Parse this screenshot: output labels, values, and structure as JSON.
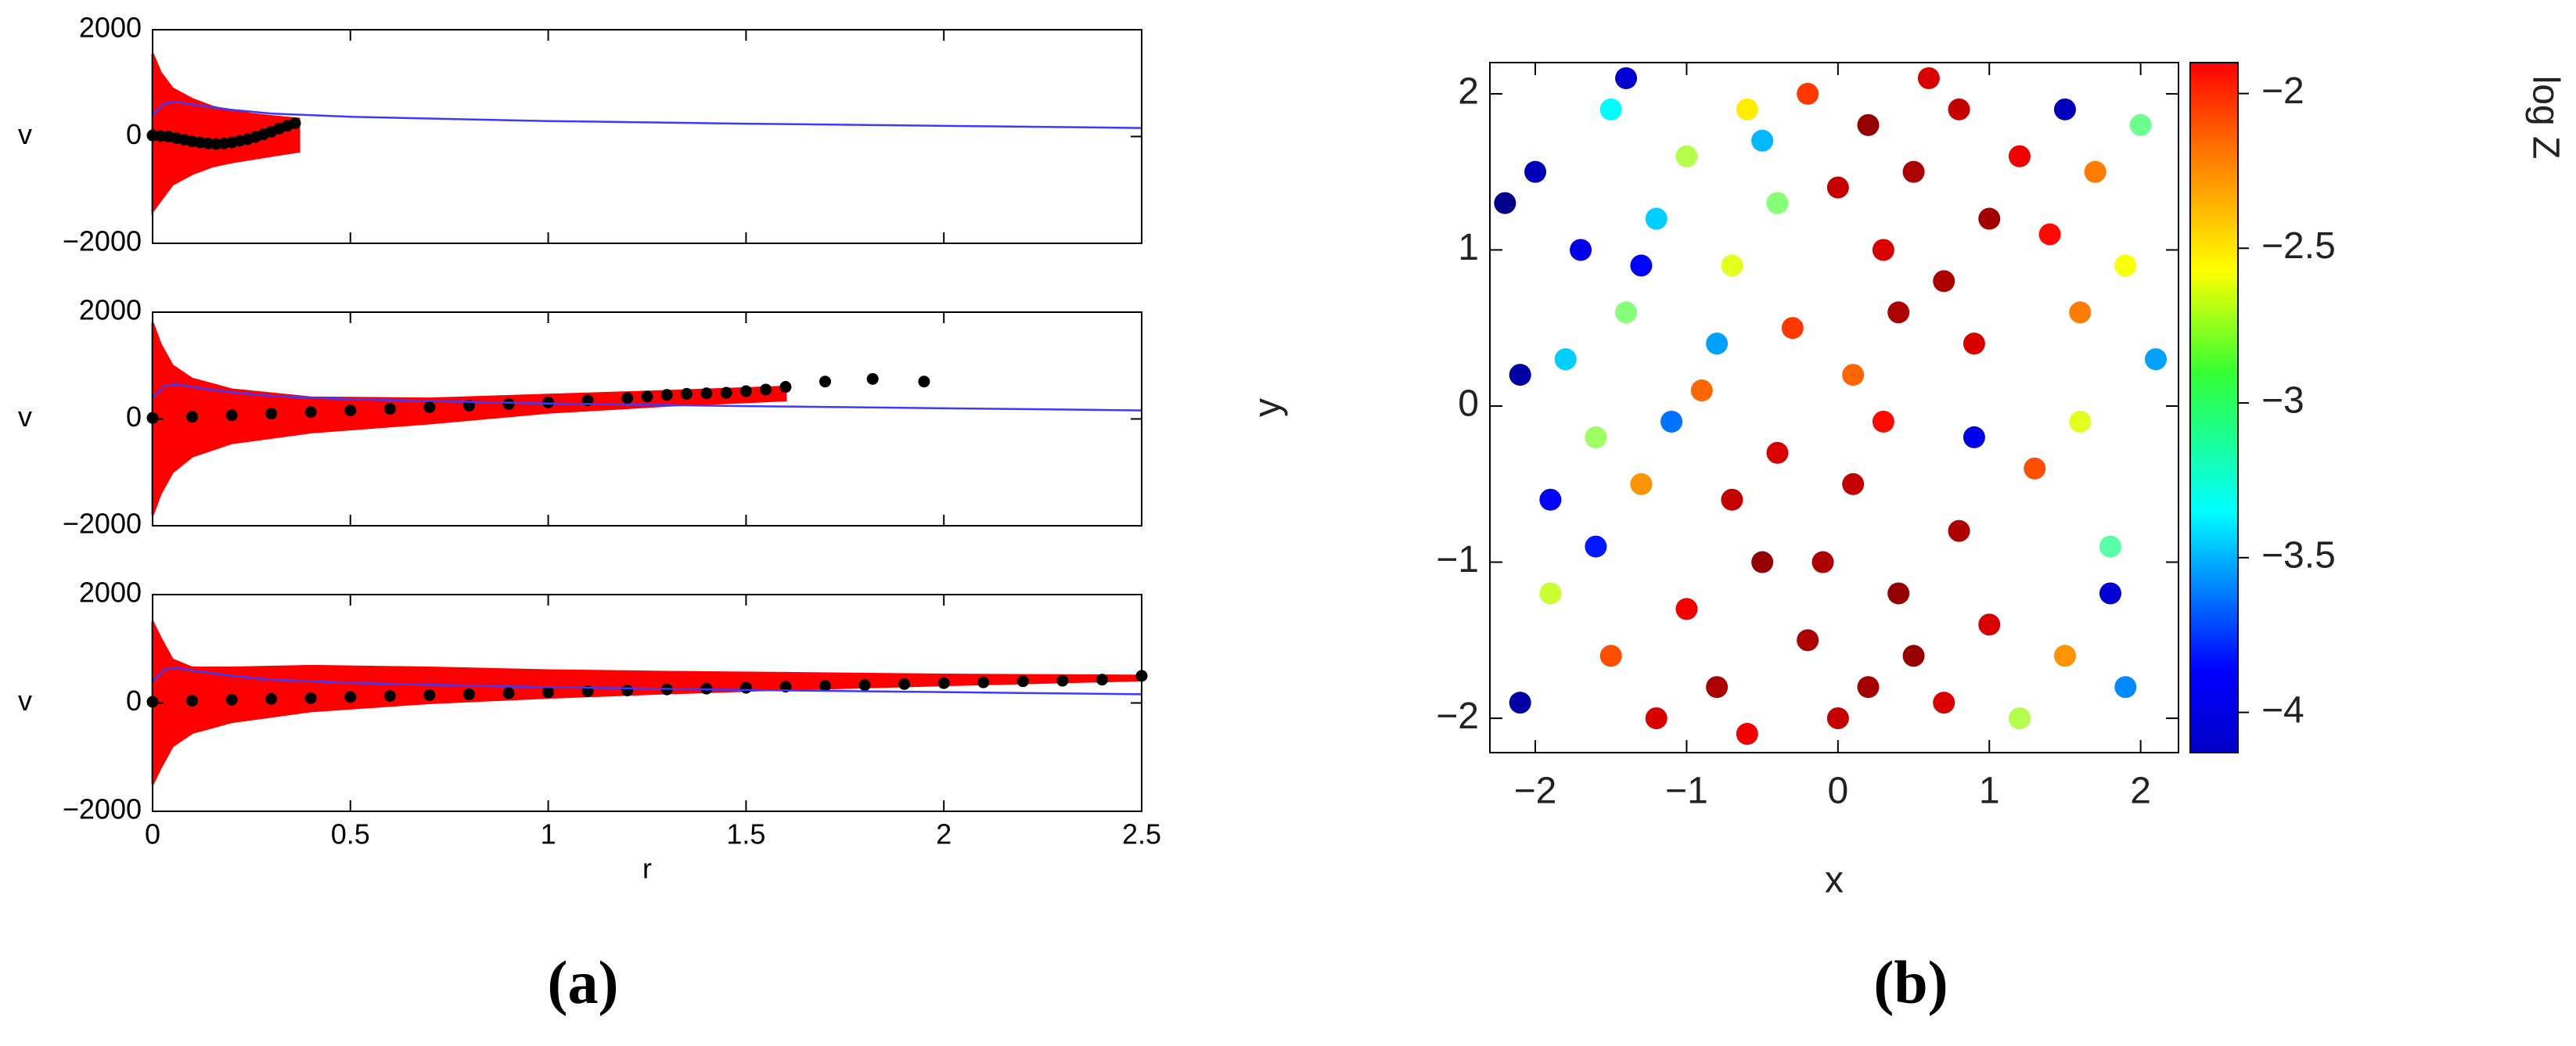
{
  "chart_data": [
    {
      "type": "scatter",
      "ylabel": "v",
      "xlim": [
        0,
        2.5
      ],
      "ylim": [
        -2000,
        2000
      ],
      "xticks": [
        0,
        0.5,
        1,
        1.5,
        2,
        2.5
      ],
      "show_xtick_labels": false,
      "yticks": [
        {
          "value": -2000,
          "label": "−2000"
        },
        0,
        2000
      ],
      "bands": [
        {
          "color": "#ff0000",
          "x": [
            0,
            0.02,
            0.05,
            0.1,
            0.15,
            0.2,
            0.25,
            0.3,
            0.37
          ],
          "upper": [
            1550,
            1200,
            900,
            700,
            560,
            480,
            420,
            380,
            330
          ],
          "lower": [
            -1400,
            -1200,
            -900,
            -700,
            -560,
            -480,
            -420,
            -360,
            -280
          ]
        }
      ],
      "series": [
        {
          "color": "#000000",
          "x": [
            0,
            0.02,
            0.04,
            0.06,
            0.08,
            0.1,
            0.12,
            0.14,
            0.16,
            0.18,
            0.2,
            0.22,
            0.24,
            0.26,
            0.28,
            0.3,
            0.32,
            0.34,
            0.36
          ],
          "values": [
            20,
            10,
            0,
            -30,
            -60,
            -90,
            -110,
            -130,
            -140,
            -130,
            -110,
            -80,
            -50,
            -10,
            40,
            90,
            150,
            200,
            250
          ]
        }
      ],
      "lines": [
        {
          "color": "#3b3bff",
          "x": [
            0,
            0.03,
            0.06,
            0.1,
            0.2,
            0.3,
            0.5,
            0.8,
            1,
            1.5,
            2,
            2.5
          ],
          "values": [
            400,
            620,
            650,
            600,
            500,
            430,
            370,
            320,
            290,
            240,
            200,
            160
          ]
        }
      ]
    },
    {
      "type": "scatter",
      "ylabel": "v",
      "xlim": [
        0,
        2.5
      ],
      "ylim": [
        -2000,
        2000
      ],
      "xticks": [
        0,
        0.5,
        1,
        1.5,
        2,
        2.5
      ],
      "show_xtick_labels": false,
      "yticks": [
        {
          "value": -2000,
          "label": "−2000"
        },
        0,
        2000
      ],
      "bands": [
        {
          "color": "#ff0000",
          "x": [
            0,
            0.02,
            0.05,
            0.1,
            0.2,
            0.4,
            0.7,
            1,
            1.3,
            1.6
          ],
          "upper": [
            1800,
            1400,
            1000,
            750,
            550,
            400,
            380,
            450,
            520,
            600
          ],
          "lower": [
            -1800,
            -1400,
            -1000,
            -700,
            -450,
            -250,
            -80,
            120,
            250,
            350
          ]
        }
      ],
      "series": [
        {
          "color": "#000000",
          "x": [
            0,
            0.1,
            0.2,
            0.3,
            0.4,
            0.5,
            0.6,
            0.7,
            0.8,
            0.9,
            1.0,
            1.1,
            1.2,
            1.25,
            1.3,
            1.35,
            1.4,
            1.45,
            1.5,
            1.55,
            1.6,
            1.7,
            1.82,
            1.95
          ],
          "values": [
            20,
            40,
            70,
            100,
            130,
            160,
            190,
            220,
            250,
            280,
            310,
            350,
            390,
            420,
            450,
            470,
            480,
            490,
            520,
            550,
            600,
            700,
            750,
            700
          ]
        }
      ],
      "lines": [
        {
          "color": "#3b3bff",
          "x": [
            0,
            0.03,
            0.06,
            0.1,
            0.2,
            0.3,
            0.5,
            0.8,
            1,
            1.5,
            2,
            2.5
          ],
          "values": [
            400,
            620,
            650,
            600,
            500,
            430,
            370,
            320,
            290,
            240,
            200,
            160
          ]
        }
      ]
    },
    {
      "type": "scatter",
      "ylabel": "v",
      "xlabel": "r",
      "xlim": [
        0,
        2.5
      ],
      "ylim": [
        -2000,
        2000
      ],
      "xticks": [
        0,
        0.5,
        1,
        1.5,
        2,
        2.5
      ],
      "show_xtick_labels": true,
      "yticks": [
        {
          "value": -2000,
          "label": "−2000"
        },
        0,
        2000
      ],
      "bands": [
        {
          "color": "#ff0000",
          "x": [
            0,
            0.02,
            0.05,
            0.1,
            0.2,
            0.4,
            0.7,
            1,
            1.3,
            1.6,
            2,
            2.5
          ],
          "upper": [
            1500,
            1200,
            800,
            650,
            650,
            680,
            650,
            600,
            570,
            550,
            520,
            500
          ],
          "lower": [
            -1500,
            -1200,
            -800,
            -550,
            -350,
            -150,
            0,
            100,
            180,
            250,
            330,
            420
          ]
        }
      ],
      "series": [
        {
          "color": "#000000",
          "x": [
            0,
            0.1,
            0.2,
            0.3,
            0.4,
            0.5,
            0.6,
            0.7,
            0.8,
            0.9,
            1.0,
            1.1,
            1.2,
            1.3,
            1.4,
            1.5,
            1.6,
            1.7,
            1.8,
            1.9,
            2.0,
            2.1,
            2.2,
            2.3,
            2.4,
            2.5
          ],
          "values": [
            20,
            40,
            60,
            75,
            90,
            110,
            130,
            145,
            160,
            180,
            200,
            215,
            230,
            250,
            265,
            280,
            300,
            315,
            330,
            350,
            365,
            380,
            400,
            410,
            430,
            500
          ]
        }
      ],
      "lines": [
        {
          "color": "#3b3bff",
          "x": [
            0,
            0.03,
            0.06,
            0.1,
            0.2,
            0.3,
            0.5,
            0.8,
            1,
            1.5,
            2,
            2.5
          ],
          "values": [
            400,
            620,
            650,
            600,
            500,
            430,
            370,
            320,
            290,
            240,
            200,
            160
          ]
        }
      ]
    },
    {
      "type": "colorscatter",
      "xlabel": "x",
      "ylabel": "y",
      "colorbar_label": "log Z",
      "color_scale": "jet",
      "xlim": [
        -2.3,
        2.25
      ],
      "ylim": [
        -2.22,
        2.2
      ],
      "clim": [
        -4.13,
        -1.9
      ],
      "xticks": [
        {
          "value": -2,
          "label": "−2"
        },
        {
          "value": -1,
          "label": "−1"
        },
        0,
        1,
        2
      ],
      "yticks": [
        {
          "value": -2,
          "label": "−2"
        },
        {
          "value": -1,
          "label": "−1"
        },
        0,
        1,
        2
      ],
      "cticks": [
        {
          "value": -2,
          "label": "−2"
        },
        {
          "value": -2.5,
          "label": "−2.5"
        },
        {
          "value": -3,
          "label": "−3"
        },
        {
          "value": -3.5,
          "label": "−3.5"
        },
        {
          "value": -4,
          "label": "−4"
        }
      ],
      "x": [
        0.2,
        0.5,
        0.8,
        1.0,
        0.3,
        0.7,
        1.2,
        0.0,
        0.6,
        1.4,
        0.4,
        0.9,
        -0.5,
        -0.2,
        0.1,
        -0.8,
        0.4,
        0.7,
        -1.0,
        0.0,
        -0.4,
        0.3,
        0.8,
        -0.7,
        -1.2,
        0.5,
        -0.1,
        1.0,
        -0.6,
        0.2,
        -0.3,
        0.1,
        1.6,
        1.3,
        -1.3,
        -0.9,
        1.7,
        -0.2,
        1.5,
        -1.5,
        -0.7,
        -1.0,
        -0.4,
        1.9,
        1.8,
        -1.6,
        -1.9,
        2.0,
        -0.6,
        1.2,
        -1.4,
        1.6,
        -1.2,
        -0.8,
        -1.5,
        -1.1,
        -0.5,
        1.9,
        -1.8,
        2.1,
        -2.0,
        -1.7,
        -2.1,
        -1.9,
        -1.4,
        -2.2,
        -1.6,
        1.5,
        0.9,
        1.8,
        -2.1,
        -1.3
      ],
      "values": [
        1.8,
        1.5,
        1.9,
        1.2,
        1.0,
        0.8,
        1.6,
        1.4,
        2.1,
        1.1,
        0.6,
        0.4,
        -1.0,
        -1.5,
        -0.5,
        -1.8,
        -1.2,
        -1.9,
        -1.3,
        -2.0,
        -0.3,
        -0.1,
        -0.8,
        -0.6,
        -2.0,
        -1.6,
        -1.0,
        -1.4,
        -2.1,
        -1.8,
        0.5,
        0.2,
        0.6,
        -0.4,
        -0.5,
        0.1,
        1.5,
        2.0,
        -1.6,
        -1.6,
        0.9,
        1.6,
        1.3,
        0.9,
        -0.9,
        -0.2,
        -1.2,
        1.8,
        1.9,
        -2.0,
        0.6,
        -0.1,
        1.2,
        0.4,
        1.9,
        -0.1,
        1.7,
        -1.8,
        0.3,
        0.3,
        1.5,
        1.0,
        0.2,
        -0.6,
        2.1,
        1.3,
        -0.9,
        1.9,
        -0.2,
        -1.2,
        -1.9,
        0.9
      ],
      "c": [
        -1.95,
        -2.0,
        -2.05,
        -1.98,
        -2.1,
        -2.0,
        -2.15,
        -2.05,
        -2.1,
        -2.2,
        -2.0,
        -2.1,
        -1.95,
        -2.0,
        -2.05,
        -2.0,
        -1.95,
        -2.1,
        -2.15,
        -2.05,
        -2.1,
        -2.2,
        -2.0,
        -2.05,
        -2.1,
        -1.95,
        -2.0,
        -2.1,
        -2.15,
        -1.98,
        -2.3,
        -2.4,
        -2.45,
        -2.35,
        -2.5,
        -2.4,
        -2.45,
        -2.3,
        -2.5,
        -2.35,
        -2.8,
        -2.9,
        -3.0,
        -2.75,
        -3.1,
        -2.95,
        -2.85,
        -3.05,
        -2.7,
        -2.9,
        -3.0,
        -2.8,
        -3.4,
        -3.5,
        -3.3,
        -3.6,
        -3.45,
        -3.55,
        -3.4,
        -3.5,
        -4.0,
        -3.9,
        -4.05,
        -3.85,
        -3.95,
        -4.1,
        -3.8,
        -4.0,
        -3.9,
        -3.95,
        -4.05,
        -3.85
      ]
    }
  ],
  "figure_labels": [
    "(a)",
    "(b)"
  ]
}
